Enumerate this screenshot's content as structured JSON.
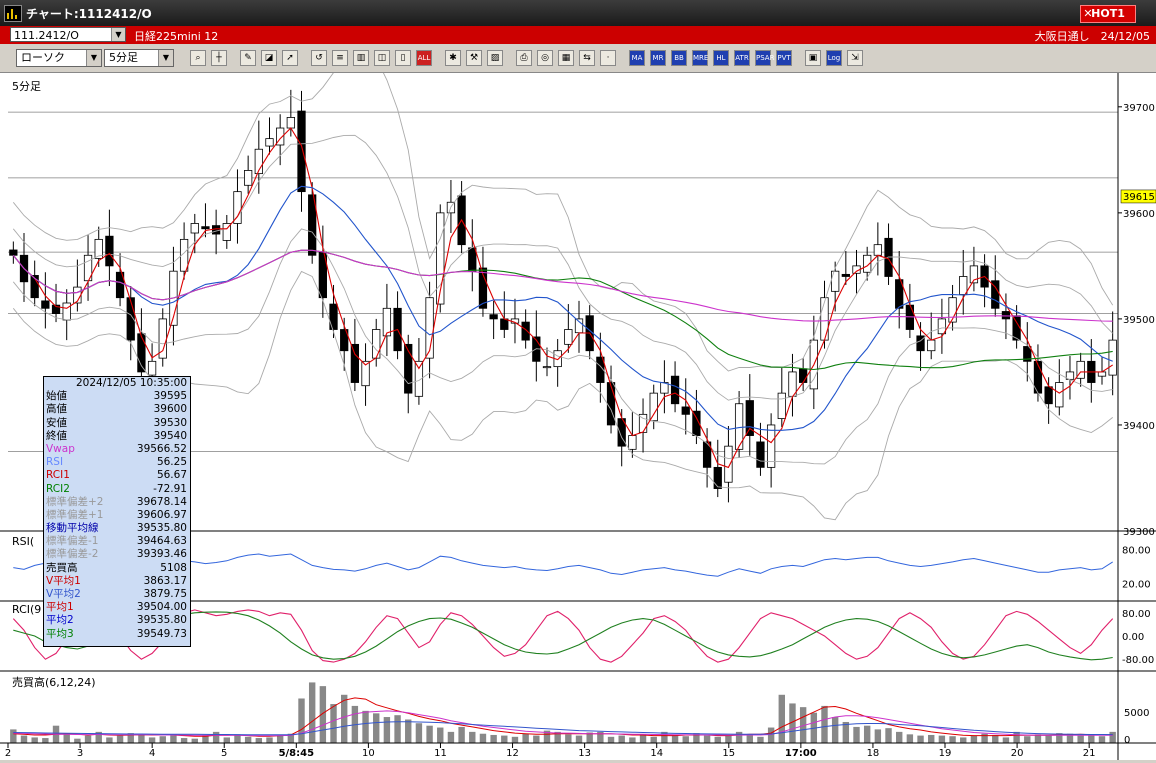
{
  "window": {
    "title": "チャート:1112412/O",
    "hot_label": "HOT1"
  },
  "infobar": {
    "symbol": "111.2412/O",
    "name": "日経225mini 12",
    "session": "大阪日通し",
    "date": "24/12/05"
  },
  "toolbar": {
    "chart_type": "ローソク",
    "interval": "5分足",
    "icons": [
      "zoom-icon",
      "crosshair-icon",
      "pen-icon",
      "eraser-icon",
      "cursor-icon",
      "rotate-icon",
      "list-icon",
      "trash-icon",
      "candle-width-icon",
      "candle-narrow-icon",
      "all-icon",
      "settings-icon",
      "wrench-icon",
      "palette-icon",
      "print-icon",
      "search-icon",
      "table-icon",
      "compare-icon",
      "blank-icon",
      "ma-icon",
      "mr-icon",
      "bb-icon",
      "mre-icon",
      "hl-icon",
      "atr-icon",
      "psar-icon",
      "pvt-icon",
      "box-icon",
      "log-icon",
      "export-icon"
    ],
    "icon_labels": {
      "all": "ALL",
      "ma": "MA",
      "mr": "MR",
      "bb": "BB",
      "mre": "MRE",
      "hl": "HL",
      "atr": "ATR",
      "psar": "PSAR",
      "pvt": "PVT",
      "log": "Log"
    }
  },
  "panels": {
    "main_label": "5分足",
    "rsi_label": "RSI(",
    "rci_label": "RCI(9",
    "vol_label": "売買高(6,12,24)"
  },
  "colors": {
    "candle": "#000000",
    "vwap": "#cc33cc",
    "rsi": "#3366dd",
    "rci1": "#e0206a",
    "rci2": "#208020",
    "ma1": "#dd0000",
    "ma2": "#2255cc",
    "ma3": "#108010",
    "bb": "#aaaaaa",
    "current_price_bg": "#ffff00"
  },
  "infobox": {
    "datetime": "2024/12/05  10:35:00",
    "rows": [
      {
        "label": "始値",
        "value": "39595",
        "color": "#000000"
      },
      {
        "label": "高値",
        "value": "39600",
        "color": "#000000"
      },
      {
        "label": "安値",
        "value": "39530",
        "color": "#000000"
      },
      {
        "label": "終値",
        "value": "39540",
        "color": "#000000"
      },
      {
        "label": "Vwap",
        "value": "39566.52",
        "color": "#cc33cc"
      },
      {
        "label": "RSI",
        "value": "56.25",
        "color": "#6688ff"
      },
      {
        "label": "RCI1",
        "value": "56.67",
        "color": "#cc0000"
      },
      {
        "label": "RCI2",
        "value": "-72.91",
        "color": "#008000"
      },
      {
        "label": "標準偏差+2",
        "value": "39678.14",
        "color": "#999999"
      },
      {
        "label": "標準偏差+1",
        "value": "39606.97",
        "color": "#999999"
      },
      {
        "label": "移動平均線",
        "value": "39535.80",
        "color": "#0000aa"
      },
      {
        "label": "標準偏差-1",
        "value": "39464.63",
        "color": "#999999"
      },
      {
        "label": "標準偏差-2",
        "value": "39393.46",
        "color": "#999999"
      },
      {
        "label": "売買高",
        "value": "5108",
        "color": "#000000"
      },
      {
        "label": "V平均1",
        "value": "3863.17",
        "color": "#cc0000"
      },
      {
        "label": "V平均2",
        "value": "3879.75",
        "color": "#3355cc"
      },
      {
        "label": "平均1",
        "value": "39504.00",
        "color": "#cc0000"
      },
      {
        "label": "平均2",
        "value": "39535.80",
        "color": "#0000cc"
      },
      {
        "label": "平均3",
        "value": "39549.73",
        "color": "#008000"
      }
    ]
  },
  "chart_data": [
    {
      "type": "candlestick",
      "panel": "main",
      "ylim": [
        39300,
        39730
      ],
      "y_ticks": [
        39300,
        39400,
        39500,
        39600,
        39700
      ],
      "current_price": "39615",
      "gridlines": [
        39375,
        39505,
        39563,
        39633,
        39695
      ],
      "x_ticks": [
        "2",
        "3",
        "4",
        "5",
        "5/8:45",
        "10",
        "11",
        "12",
        "13",
        "14",
        "15",
        "17:00",
        "18",
        "19",
        "20",
        "21"
      ],
      "closes": [
        39560,
        39535,
        39520,
        39510,
        39505,
        39515,
        39530,
        39560,
        39575,
        39550,
        39520,
        39480,
        39450,
        39460,
        39500,
        39545,
        39575,
        39590,
        39585,
        39580,
        39590,
        39620,
        39640,
        39660,
        39670,
        39680,
        39690,
        39620,
        39560,
        39520,
        39490,
        39470,
        39440,
        39460,
        39490,
        39510,
        39470,
        39430,
        39460,
        39520,
        39600,
        39610,
        39570,
        39545,
        39510,
        39500,
        39490,
        39500,
        39480,
        39460,
        39455,
        39470,
        39490,
        39500,
        39470,
        39440,
        39400,
        39380,
        39390,
        39410,
        39430,
        39440,
        39420,
        39410,
        39390,
        39360,
        39340,
        39380,
        39420,
        39390,
        39360,
        39400,
        39430,
        39450,
        39440,
        39480,
        39520,
        39545,
        39540,
        39550,
        39560,
        39570,
        39540,
        39510,
        39490,
        39470,
        39480,
        39500,
        39520,
        39540,
        39550,
        39530,
        39510,
        39500,
        39480,
        39460,
        39430,
        39420,
        39440,
        39450,
        39460,
        39440,
        39450,
        39480
      ]
    },
    {
      "type": "line",
      "panel": "rsi",
      "ylim": [
        0,
        100
      ],
      "y_ticks": [
        20,
        80
      ],
      "y_tick_labels": [
        "20.00",
        "80.00"
      ],
      "series": [
        {
          "values": [
            48,
            45,
            52,
            56,
            50,
            44,
            40,
            47,
            55,
            60,
            58,
            52,
            46,
            48,
            56,
            62,
            60,
            58,
            55,
            57,
            60,
            66,
            70,
            72,
            68,
            70,
            72,
            62,
            52,
            48,
            45,
            44,
            42,
            46,
            52,
            56,
            50,
            44,
            48,
            58,
            68,
            66,
            60,
            56,
            52,
            50,
            48,
            50,
            46,
            44,
            43,
            46,
            50,
            52,
            48,
            44,
            38,
            36,
            40,
            44,
            46,
            48,
            44,
            42,
            38,
            35,
            33,
            40,
            46,
            42,
            38,
            46,
            50,
            52,
            50,
            56,
            62,
            64,
            62,
            64,
            66,
            66,
            60,
            56,
            52,
            50,
            52,
            55,
            58,
            62,
            64,
            60,
            56,
            52,
            48,
            44,
            40,
            40,
            44,
            46,
            48,
            44,
            46,
            58
          ]
        }
      ]
    },
    {
      "type": "line",
      "panel": "rci",
      "ylim": [
        -100,
        100
      ],
      "y_ticks": [
        80,
        0,
        -80
      ],
      "y_tick_labels": [
        "80.00",
        "0.00",
        "-80.00"
      ],
      "series": [
        {
          "values": [
            60,
            20,
            -40,
            -80,
            -60,
            -10,
            30,
            60,
            70,
            50,
            0,
            -50,
            -80,
            -60,
            -20,
            40,
            80,
            90,
            80,
            70,
            75,
            85,
            90,
            85,
            70,
            80,
            75,
            20,
            -50,
            -85,
            -90,
            -80,
            -60,
            -20,
            30,
            70,
            60,
            10,
            -40,
            -20,
            40,
            80,
            70,
            40,
            0,
            -40,
            -70,
            -60,
            -30,
            20,
            70,
            85,
            60,
            20,
            -40,
            -80,
            -90,
            -70,
            -30,
            10,
            60,
            70,
            50,
            20,
            -30,
            -70,
            -90,
            -80,
            -40,
            10,
            60,
            80,
            70,
            60,
            40,
            20,
            0,
            -30,
            -60,
            -80,
            -70,
            -40,
            10,
            60,
            80,
            60,
            30,
            -20,
            -60,
            -80,
            -70,
            -30,
            20,
            70,
            85,
            75,
            50,
            20,
            -10,
            -40,
            -60,
            -30,
            20,
            60
          ]
        },
        {
          "values": [
            20,
            10,
            0,
            -20,
            -30,
            -40,
            -45,
            -35,
            -15,
            10,
            30,
            45,
            55,
            60,
            65,
            70,
            75,
            80,
            82,
            83,
            82,
            78,
            70,
            55,
            35,
            10,
            -20,
            -45,
            -65,
            -75,
            -80,
            -78,
            -70,
            -55,
            -35,
            -10,
            15,
            35,
            50,
            60,
            62,
            58,
            45,
            30,
            10,
            -10,
            -30,
            -45,
            -55,
            -60,
            -62,
            -58,
            -45,
            -30,
            -10,
            10,
            30,
            45,
            55,
            60,
            55,
            40,
            20,
            0,
            -20,
            -40,
            -55,
            -65,
            -70,
            -72,
            -68,
            -58,
            -45,
            -30,
            -10,
            10,
            30,
            45,
            55,
            60,
            58,
            50,
            35,
            15,
            -5,
            -25,
            -45,
            -60,
            -70,
            -75,
            -72,
            -65,
            -55,
            -45,
            -35,
            -30,
            -40,
            -55,
            -65,
            -72,
            -78,
            -82,
            -80,
            -74
          ]
        }
      ]
    },
    {
      "type": "bar",
      "panel": "volume",
      "ylim": [
        0,
        11000
      ],
      "y_ticks": [
        0,
        5000
      ],
      "y_tick_labels": [
        "0",
        "5000"
      ],
      "values": [
        2200,
        1200,
        900,
        800,
        2800,
        1500,
        700,
        1200,
        1800,
        900,
        1200,
        1600,
        1400,
        900,
        1100,
        1400,
        800,
        700,
        1200,
        1800,
        900,
        1400,
        1000,
        800,
        900,
        1300,
        1500,
        7200,
        9800,
        9200,
        6300,
        7800,
        6000,
        5200,
        4800,
        4200,
        4500,
        3800,
        3200,
        2800,
        2500,
        1800,
        2600,
        1800,
        1500,
        1300,
        1200,
        1000,
        1500,
        1200,
        2000,
        1800,
        1400,
        1200,
        1700,
        1800,
        1000,
        1200,
        900,
        1400,
        1000,
        1800,
        1300,
        1100,
        1600,
        1200,
        1000,
        1300,
        1800,
        1400,
        1000,
        2500,
        7800,
        6400,
        5800,
        4900,
        6000,
        4200,
        3400,
        2600,
        2800,
        2200,
        2400,
        1800,
        1400,
        1200,
        1300,
        1200,
        1100,
        900,
        1200,
        1500,
        1300,
        900,
        1800,
        1100,
        1400,
        1200,
        1600,
        1500,
        1200,
        1300,
        1100,
        1800
      ],
      "series_ma": [
        {
          "period": 6,
          "values": [
            1500,
            1400,
            1300,
            1300,
            1400,
            1450,
            1400,
            1300,
            1400,
            1300,
            1250,
            1300,
            1350,
            1300,
            1300,
            1300,
            1200,
            1100,
            1100,
            1250,
            1250,
            1300,
            1200,
            1100,
            1100,
            1200,
            1300,
            2200,
            3500,
            4800,
            5900,
            6900,
            7300,
            7100,
            6200,
            5700,
            5200,
            4800,
            4300,
            3900,
            3600,
            3200,
            2900,
            2600,
            2300,
            2000,
            1800,
            1600,
            1500,
            1400,
            1400,
            1500,
            1500,
            1500,
            1500,
            1500,
            1500,
            1400,
            1300,
            1300,
            1200,
            1200,
            1200,
            1300,
            1300,
            1300,
            1200,
            1200,
            1300,
            1400,
            1400,
            1600,
            2600,
            3400,
            4200,
            5000,
            5800,
            5900,
            5500,
            4800,
            4200,
            3600,
            3000,
            2600,
            2300,
            2100,
            1800,
            1600,
            1400,
            1250,
            1200,
            1200,
            1200,
            1200,
            1250,
            1250,
            1250,
            1250,
            1300,
            1350,
            1400,
            1350,
            1350,
            1350
          ]
        },
        {
          "period": 12,
          "values": [
            1600,
            1550,
            1500,
            1450,
            1400,
            1400,
            1380,
            1360,
            1380,
            1360,
            1350,
            1330,
            1330,
            1320,
            1300,
            1300,
            1280,
            1260,
            1240,
            1240,
            1240,
            1240,
            1220,
            1200,
            1200,
            1200,
            1230,
            1600,
            2200,
            2900,
            3600,
            4200,
            4700,
            5000,
            5100,
            5200,
            5100,
            4900,
            4600,
            4300,
            4000,
            3600,
            3300,
            3000,
            2700,
            2500,
            2300,
            2100,
            1900,
            1800,
            1700,
            1600,
            1600,
            1550,
            1500,
            1500,
            1480,
            1450,
            1420,
            1400,
            1380,
            1380,
            1350,
            1330,
            1320,
            1300,
            1290,
            1280,
            1280,
            1290,
            1300,
            1380,
            1800,
            2300,
            2800,
            3300,
            3800,
            4200,
            4400,
            4400,
            4300,
            4100,
            3800,
            3500,
            3200,
            2900,
            2600,
            2300,
            2100,
            1900,
            1700,
            1600,
            1500,
            1400,
            1350,
            1300,
            1280,
            1260,
            1260,
            1260,
            1260,
            1260,
            1260,
            1260
          ]
        },
        {
          "period": 24,
          "values": [
            1700,
            1680,
            1650,
            1620,
            1600,
            1580,
            1560,
            1540,
            1520,
            1500,
            1480,
            1460,
            1450,
            1440,
            1430,
            1420,
            1410,
            1400,
            1390,
            1380,
            1370,
            1360,
            1350,
            1340,
            1330,
            1330,
            1340,
            1500,
            1800,
            2100,
            2400,
            2700,
            2950,
            3150,
            3300,
            3400,
            3450,
            3450,
            3400,
            3350,
            3300,
            3200,
            3100,
            3000,
            2900,
            2800,
            2700,
            2600,
            2500,
            2400,
            2300,
            2200,
            2100,
            2000,
            1950,
            1900,
            1850,
            1800,
            1750,
            1700,
            1650,
            1600,
            1560,
            1530,
            1500,
            1480,
            1460,
            1440,
            1430,
            1420,
            1420,
            1450,
            1650,
            1900,
            2150,
            2400,
            2650,
            2850,
            3000,
            3100,
            3150,
            3150,
            3100,
            3000,
            2900,
            2800,
            2650,
            2500,
            2350,
            2200,
            2050,
            1950,
            1850,
            1750,
            1650,
            1580,
            1520,
            1480,
            1440,
            1410,
            1390,
            1380,
            1370,
            1360
          ]
        }
      ]
    }
  ]
}
